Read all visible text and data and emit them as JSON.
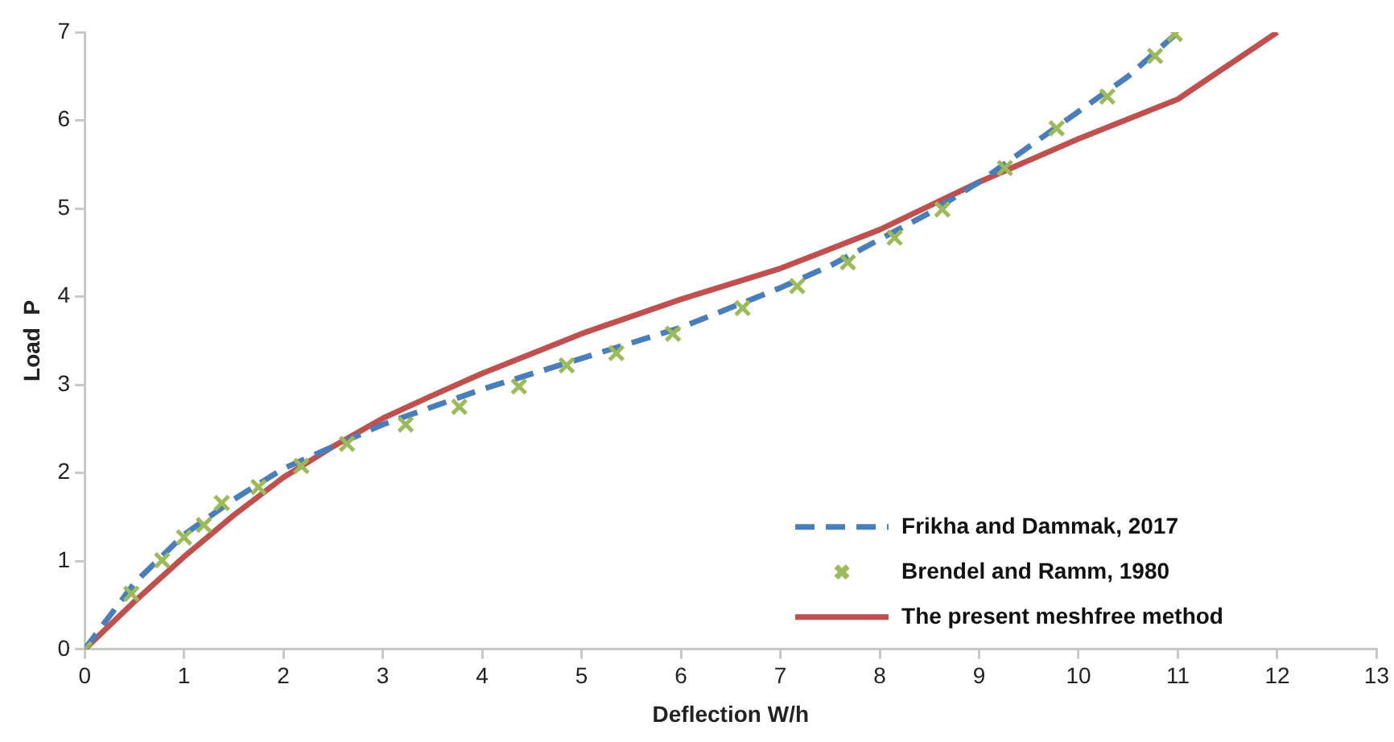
{
  "chart_data": {
    "type": "line",
    "xlabel": "Deflection W/h",
    "ylabel": "Load  P",
    "xlim": [
      0,
      13
    ],
    "xticks": [
      0,
      1,
      2,
      3,
      4,
      5,
      6,
      7,
      8,
      9,
      10,
      11,
      12,
      13
    ],
    "ylim": [
      0,
      7
    ],
    "yticks": [
      0,
      1,
      2,
      3,
      4,
      5,
      6,
      7
    ],
    "grid": false,
    "legend": "bottom right",
    "series": [
      {
        "name": "Frikha and Dammak, 2017",
        "line_style": "dashed",
        "marker": "none",
        "color": "#4a7ebb",
        "x": [
          0,
          0.5,
          1,
          1.5,
          2,
          2.6,
          3,
          4,
          5,
          6,
          7,
          7.5,
          8,
          8.5,
          9,
          9.5,
          10,
          10.5,
          11
        ],
        "values": [
          0,
          0.75,
          1.3,
          1.7,
          2.05,
          2.35,
          2.55,
          2.95,
          3.3,
          3.65,
          4.1,
          4.35,
          4.65,
          4.95,
          5.3,
          5.7,
          6.1,
          6.5,
          7.0
        ]
      },
      {
        "name": "Brendel and Ramm, 1980",
        "type": "scatter",
        "marker": "cross",
        "color": "#9bbb59",
        "x": [
          0,
          0.47,
          0.78,
          1.0,
          1.2,
          1.38,
          1.75,
          2.18,
          2.64,
          3.23,
          3.77,
          4.37,
          4.85,
          5.35,
          5.92,
          6.62,
          7.17,
          7.68,
          8.15,
          8.63,
          9.26,
          9.78,
          10.29,
          10.77,
          10.97
        ],
        "values": [
          0,
          0.63,
          1.01,
          1.27,
          1.41,
          1.66,
          1.84,
          2.08,
          2.33,
          2.55,
          2.75,
          2.98,
          3.22,
          3.36,
          3.58,
          3.87,
          4.12,
          4.39,
          4.67,
          4.99,
          5.46,
          5.91,
          6.27,
          6.73,
          6.98
        ]
      },
      {
        "name": "The present meshfree method",
        "line_style": "solid",
        "marker": "none",
        "color": "#c0504d",
        "x": [
          0,
          0.5,
          1,
          1.5,
          2,
          2.5,
          3,
          3.5,
          4,
          5,
          6,
          7,
          8,
          9,
          10,
          11,
          12
        ],
        "values": [
          0,
          0.54,
          1.05,
          1.52,
          1.95,
          2.3,
          2.62,
          2.88,
          3.13,
          3.58,
          3.97,
          4.32,
          4.76,
          5.3,
          5.79,
          6.24,
          7.0
        ]
      }
    ]
  }
}
